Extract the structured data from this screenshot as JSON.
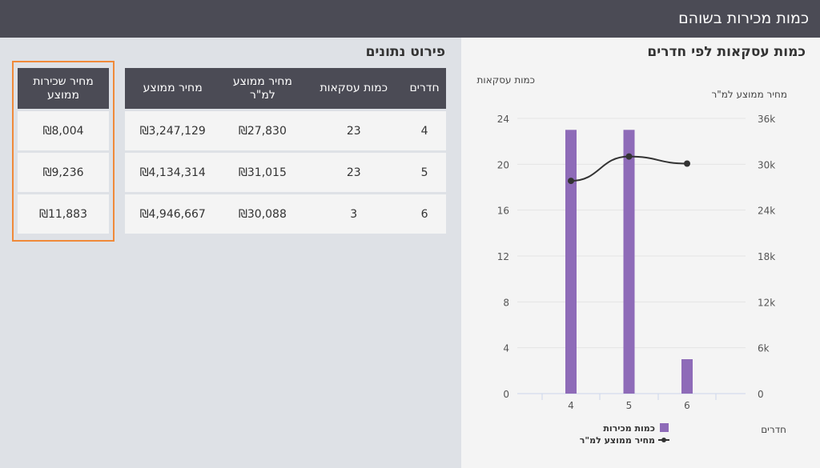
{
  "header": {
    "title": "כמות מכירות בשוהם"
  },
  "chart_section": {
    "title": "כמות עסקאות לפי חדרים"
  },
  "table_section": {
    "title": "פירוט נתונים"
  },
  "table": {
    "columns": [
      "חדרים",
      "כמות עסקאות",
      "מחיר ממוצע למ\"ר",
      "מחיר ממוצע"
    ],
    "rows": [
      [
        "4",
        "23",
        "₪27,830",
        "₪3,247,129"
      ],
      [
        "5",
        "23",
        "₪31,015",
        "₪4,134,314"
      ],
      [
        "6",
        "3",
        "₪30,088",
        "₪4,946,667"
      ]
    ]
  },
  "highlight_table": {
    "column": "מחיר שכירות ממוצע",
    "rows": [
      "₪8,004",
      "₪9,236",
      "₪11,883"
    ]
  },
  "chart_data": {
    "type": "bar",
    "categories": [
      "4",
      "5",
      "6"
    ],
    "series": [
      {
        "name": "כמות מכירות",
        "type": "bar",
        "axis": "left",
        "values": [
          23,
          23,
          3
        ],
        "color": "#8e6bb8"
      },
      {
        "name": "מחיר ממוצע למ\"ר",
        "type": "line",
        "axis": "right",
        "values": [
          27830,
          31015,
          30088
        ],
        "color": "#333333"
      }
    ],
    "xlabel": "חדרים",
    "ylabel_left": "כמות עסקאות",
    "ylabel_right": "מחיר ממוצע למ\"ר",
    "ylim_left": [
      0,
      24
    ],
    "ylim_right": [
      0,
      36000
    ],
    "yticks_left": [
      "0",
      "4",
      "8",
      "12",
      "16",
      "20",
      "24"
    ],
    "yticks_right": [
      "0",
      "6k",
      "12k",
      "18k",
      "24k",
      "30k",
      "36k"
    ],
    "grid": true,
    "legend": "bottom"
  }
}
